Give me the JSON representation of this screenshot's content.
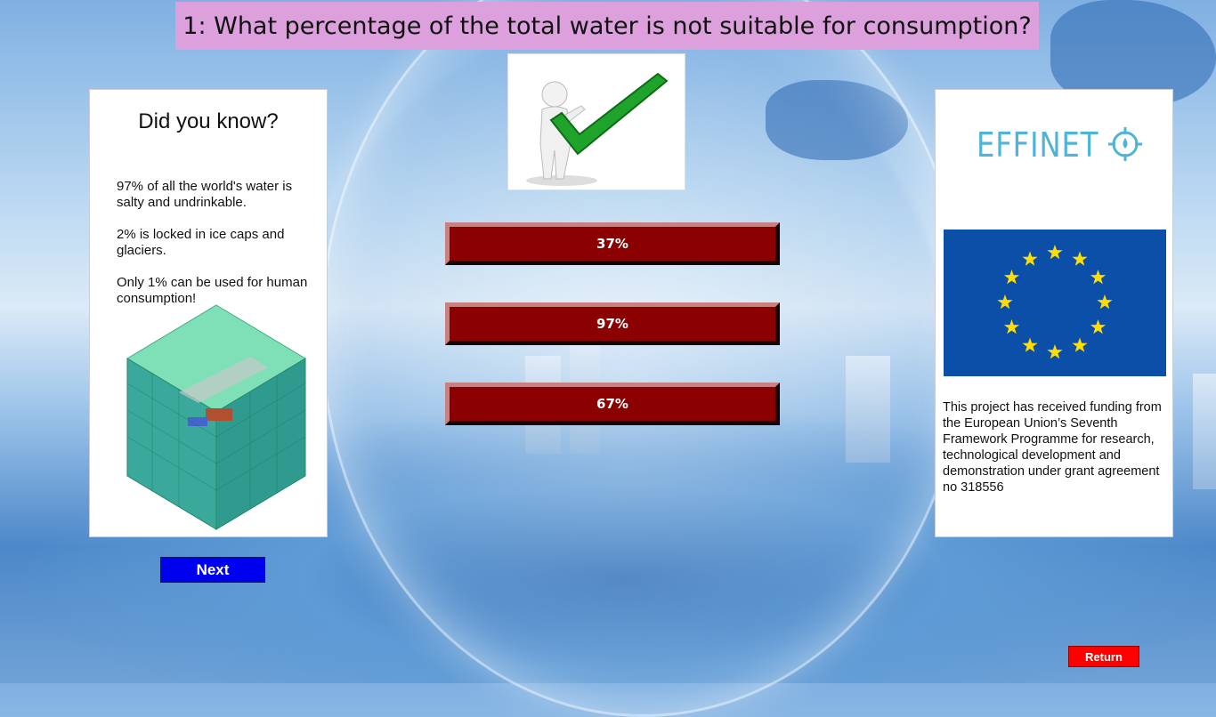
{
  "question": {
    "title": "1: What percentage of the total water is not suitable for consumption?"
  },
  "did_you_know": {
    "heading": "Did you know?",
    "facts": [
      "97% of all the world's water is salty and undrinkable.",
      "2% is locked in ice caps and glaciers.",
      "Only 1% can be used for human consumption!"
    ]
  },
  "answers": [
    {
      "label": "37%"
    },
    {
      "label": "97%"
    },
    {
      "label": "67%"
    }
  ],
  "feedback_icon": "checkmark-person-icon",
  "sponsor": {
    "logo_text": "EFFINET",
    "logo_icon": "target-drop-icon",
    "flag_icon": "eu-flag-icon",
    "funding_text": "This project has received funding from the European Union’s Seventh Framework Programme for research, technological development and demonstration under grant agreement no 318556"
  },
  "buttons": {
    "next": "Next",
    "return": "Return"
  },
  "colors": {
    "title_bg": "#dca0dc",
    "answer_bg": "#8b0000",
    "next_bg": "#0000f0",
    "return_bg": "#ff0000",
    "effinet": "#4fb4d8",
    "eu_blue": "#0b4fa8",
    "eu_star": "#ffdd00"
  }
}
